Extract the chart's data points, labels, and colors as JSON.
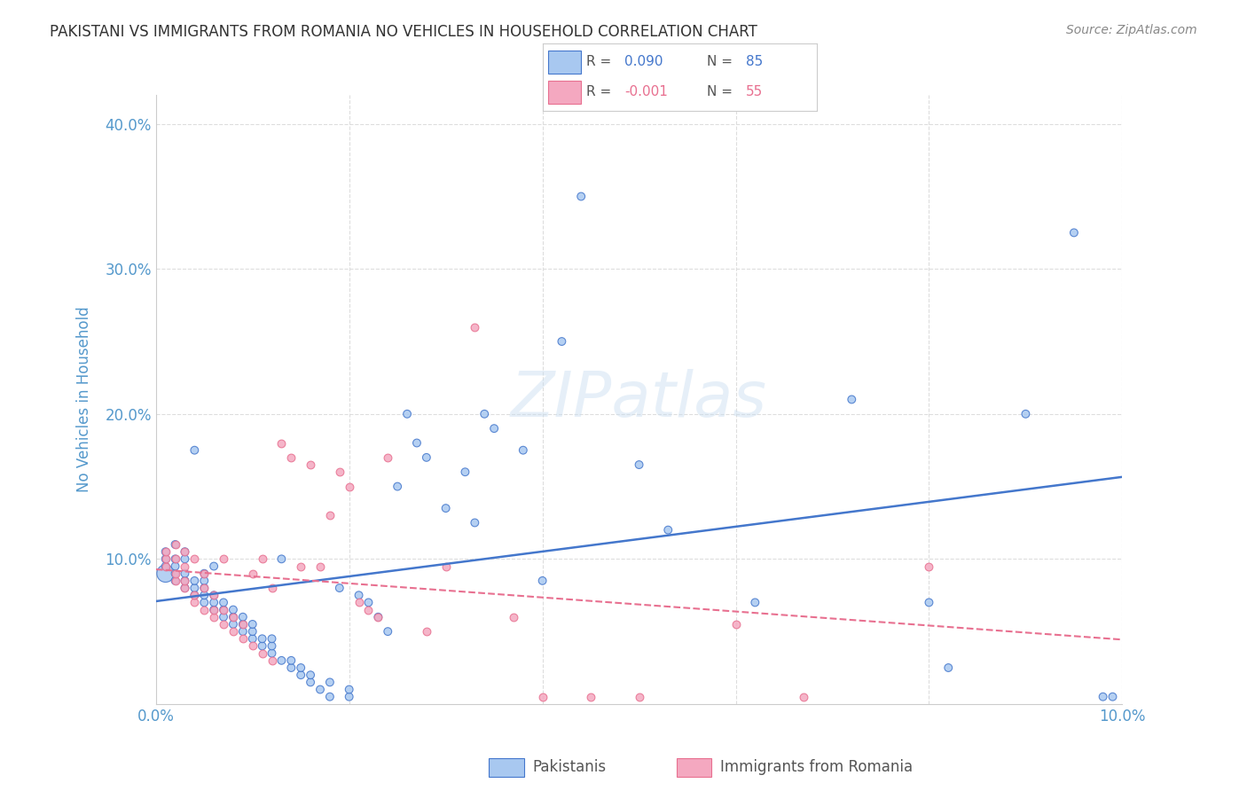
{
  "title": "PAKISTANI VS IMMIGRANTS FROM ROMANIA NO VEHICLES IN HOUSEHOLD CORRELATION CHART",
  "source": "Source: ZipAtlas.com",
  "xlabel": "",
  "ylabel": "No Vehicles in Household",
  "xlim": [
    0.0,
    0.1
  ],
  "ylim": [
    0.0,
    0.42
  ],
  "xticks": [
    0.0,
    0.02,
    0.04,
    0.06,
    0.08,
    0.1
  ],
  "xticklabels": [
    "0.0%",
    "",
    "",
    "",
    "",
    "10.0%"
  ],
  "yticks": [
    0.0,
    0.1,
    0.2,
    0.3,
    0.4
  ],
  "yticklabels": [
    "",
    "10.0%",
    "20.0%",
    "30.0%",
    "40.0%"
  ],
  "legend_r_pakistani": "0.090",
  "legend_n_pakistani": "85",
  "legend_r_romanian": "-0.001",
  "legend_n_romanian": "55",
  "pakistani_color": "#a8c8f0",
  "romanian_color": "#f4a8c0",
  "line_pakistani_color": "#4477cc",
  "line_romanian_color": "#e87090",
  "watermark": "ZIPatlas",
  "background_color": "#ffffff",
  "grid_color": "#dddddd",
  "tick_color": "#5599cc",
  "pakistani_x": [
    0.001,
    0.001,
    0.001,
    0.001,
    0.002,
    0.002,
    0.002,
    0.002,
    0.002,
    0.003,
    0.003,
    0.003,
    0.003,
    0.003,
    0.004,
    0.004,
    0.004,
    0.004,
    0.005,
    0.005,
    0.005,
    0.005,
    0.005,
    0.006,
    0.006,
    0.006,
    0.006,
    0.007,
    0.007,
    0.007,
    0.008,
    0.008,
    0.008,
    0.009,
    0.009,
    0.009,
    0.01,
    0.01,
    0.01,
    0.011,
    0.011,
    0.012,
    0.012,
    0.012,
    0.013,
    0.013,
    0.014,
    0.014,
    0.015,
    0.015,
    0.016,
    0.016,
    0.017,
    0.018,
    0.018,
    0.019,
    0.02,
    0.02,
    0.021,
    0.022,
    0.023,
    0.024,
    0.025,
    0.026,
    0.027,
    0.028,
    0.03,
    0.032,
    0.033,
    0.034,
    0.035,
    0.038,
    0.04,
    0.042,
    0.044,
    0.05,
    0.053,
    0.062,
    0.072,
    0.08,
    0.082,
    0.09,
    0.095,
    0.098,
    0.099
  ],
  "pakistani_y": [
    0.09,
    0.095,
    0.1,
    0.105,
    0.085,
    0.09,
    0.095,
    0.1,
    0.11,
    0.08,
    0.085,
    0.09,
    0.1,
    0.105,
    0.075,
    0.08,
    0.085,
    0.175,
    0.07,
    0.075,
    0.08,
    0.085,
    0.09,
    0.065,
    0.07,
    0.075,
    0.095,
    0.06,
    0.065,
    0.07,
    0.055,
    0.06,
    0.065,
    0.05,
    0.055,
    0.06,
    0.045,
    0.05,
    0.055,
    0.04,
    0.045,
    0.035,
    0.04,
    0.045,
    0.03,
    0.1,
    0.025,
    0.03,
    0.02,
    0.025,
    0.015,
    0.02,
    0.01,
    0.005,
    0.015,
    0.08,
    0.005,
    0.01,
    0.075,
    0.07,
    0.06,
    0.05,
    0.15,
    0.2,
    0.18,
    0.17,
    0.135,
    0.16,
    0.125,
    0.2,
    0.19,
    0.175,
    0.085,
    0.25,
    0.35,
    0.165,
    0.12,
    0.07,
    0.21,
    0.07,
    0.025,
    0.2,
    0.325,
    0.005,
    0.005
  ],
  "pakistani_sizes": [
    200,
    40,
    40,
    40,
    40,
    40,
    40,
    40,
    40,
    40,
    40,
    40,
    40,
    40,
    40,
    40,
    40,
    40,
    40,
    40,
    40,
    40,
    40,
    40,
    40,
    40,
    40,
    40,
    40,
    40,
    40,
    40,
    40,
    40,
    40,
    40,
    40,
    40,
    40,
    40,
    40,
    40,
    40,
    40,
    40,
    40,
    40,
    40,
    40,
    40,
    40,
    40,
    40,
    40,
    40,
    40,
    40,
    40,
    40,
    40,
    40,
    40,
    40,
    40,
    40,
    40,
    40,
    40,
    40,
    40,
    40,
    40,
    40,
    40,
    40,
    40,
    40,
    40,
    40,
    40,
    40,
    40,
    40,
    40,
    40
  ],
  "romanian_x": [
    0.001,
    0.001,
    0.001,
    0.002,
    0.002,
    0.002,
    0.002,
    0.003,
    0.003,
    0.003,
    0.003,
    0.004,
    0.004,
    0.004,
    0.005,
    0.005,
    0.005,
    0.006,
    0.006,
    0.006,
    0.007,
    0.007,
    0.007,
    0.008,
    0.008,
    0.009,
    0.009,
    0.01,
    0.01,
    0.011,
    0.011,
    0.012,
    0.012,
    0.013,
    0.014,
    0.015,
    0.016,
    0.017,
    0.018,
    0.019,
    0.02,
    0.021,
    0.022,
    0.023,
    0.024,
    0.028,
    0.03,
    0.033,
    0.037,
    0.04,
    0.045,
    0.05,
    0.06,
    0.067,
    0.08
  ],
  "romanian_y": [
    0.095,
    0.1,
    0.105,
    0.085,
    0.09,
    0.1,
    0.11,
    0.08,
    0.085,
    0.095,
    0.105,
    0.07,
    0.075,
    0.1,
    0.065,
    0.08,
    0.09,
    0.06,
    0.065,
    0.075,
    0.055,
    0.065,
    0.1,
    0.05,
    0.06,
    0.045,
    0.055,
    0.04,
    0.09,
    0.035,
    0.1,
    0.03,
    0.08,
    0.18,
    0.17,
    0.095,
    0.165,
    0.095,
    0.13,
    0.16,
    0.15,
    0.07,
    0.065,
    0.06,
    0.17,
    0.05,
    0.095,
    0.26,
    0.06,
    0.005,
    0.005,
    0.005,
    0.055,
    0.005,
    0.095
  ]
}
